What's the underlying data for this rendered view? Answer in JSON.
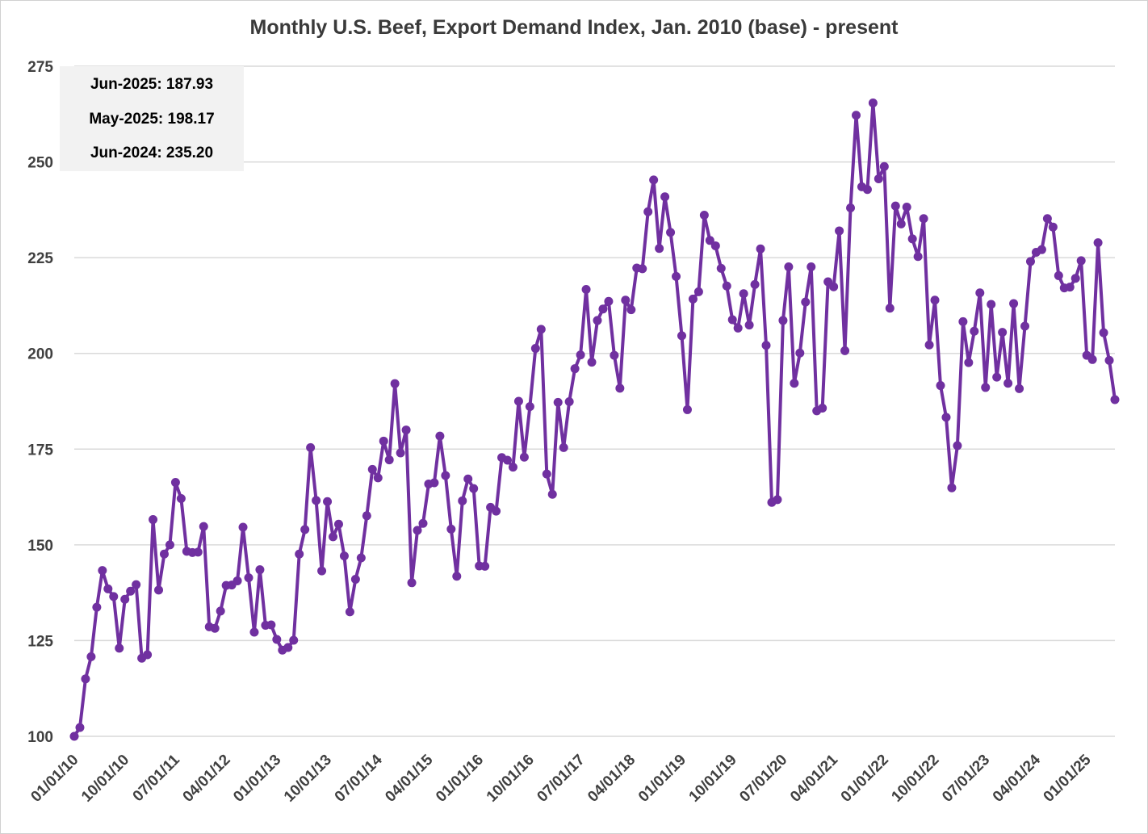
{
  "chart_data": {
    "type": "line",
    "title": "Monthly U.S. Beef, Export Demand Index, Jan. 2010 (base) - present",
    "xlabel": "",
    "ylabel": "",
    "ylim": [
      100,
      275
    ],
    "yticks": [
      100,
      125,
      150,
      175,
      200,
      225,
      250,
      275
    ],
    "x_tick_labels": [
      "01/01/10",
      "10/01/10",
      "07/01/11",
      "04/01/12",
      "01/01/13",
      "10/01/13",
      "07/01/14",
      "04/01/15",
      "01/01/16",
      "10/01/16",
      "07/01/17",
      "04/01/18",
      "01/01/19",
      "10/01/19",
      "07/01/20",
      "04/01/21",
      "01/01/22",
      "10/01/22",
      "07/01/23",
      "04/01/24",
      "01/01/25"
    ],
    "x_start": "2010-01",
    "x_end": "2025-06",
    "grid": "horizontal",
    "line_color": "#7030a0",
    "annotations": [
      "Jun-2025: 187.93",
      "May-2025: 198.17",
      "Jun-2024: 235.20"
    ],
    "series": [
      {
        "values": [
          100,
          102.3,
          115,
          120.8,
          133.7,
          143.3,
          138.5,
          136.5,
          123,
          135.8,
          137.9,
          139.6,
          120.4,
          121.3,
          156.6,
          138.2,
          147.6,
          150,
          166.3,
          162.1,
          148.3,
          148,
          148.1,
          154.8,
          128.6,
          128.2,
          132.7,
          139.4,
          139.5,
          140.6,
          154.6,
          141.4,
          127.2,
          143.5,
          129,
          129.1,
          125.3,
          122.5,
          123.2,
          125.1,
          147.6,
          154,
          175.4,
          161.6,
          143.2,
          161.3,
          152.1,
          155.4,
          147.1,
          132.5,
          141,
          146.6,
          157.6,
          169.7,
          167.5,
          177.1,
          172.2,
          192.1,
          174,
          180,
          140.1,
          153.8,
          155.6,
          165.9,
          166.2,
          178.4,
          168.1,
          154.1,
          141.8,
          161.5,
          167.2,
          164.7,
          144.5,
          144.4,
          159.8,
          158.8,
          172.8,
          172.1,
          170.3,
          187.5,
          172.9,
          186.1,
          201.3,
          206.3,
          168.5,
          163.2,
          187.2,
          175.4,
          187.4,
          196,
          199.6,
          216.7,
          197.7,
          208.6,
          211.6,
          213.6,
          199.5,
          190.9,
          213.9,
          211.4,
          222.3,
          222.1,
          237,
          245.3,
          227.4,
          240.9,
          231.6,
          220.1,
          204.6,
          185.3,
          214.2,
          216.1,
          236.1,
          229.5,
          228.1,
          222.2,
          217.6,
          208.8,
          206.6,
          215.6,
          207.4,
          218,
          227.3,
          202.1,
          161.1,
          161.8,
          208.6,
          222.6,
          192.2,
          200.1,
          213.4,
          222.6,
          185,
          185.7,
          218.7,
          217.4,
          232,
          200.7,
          238,
          262.2,
          243.5,
          242.8,
          265.4,
          245.6,
          248.8,
          211.8,
          238.5,
          233.8,
          238.2,
          229.9,
          225.3,
          235.2,
          202.2,
          213.9,
          191.6,
          183.3,
          164.9,
          175.9,
          208.3,
          197.6,
          205.8,
          215.8,
          191.1,
          212.8,
          193.8,
          205.5,
          192.2,
          213,
          190.8,
          207.1,
          224,
          226.4,
          227.1,
          235.2,
          233,
          220.3,
          217.1,
          217.3,
          219.6,
          224.2,
          199.5,
          198.4,
          228.9,
          205.4,
          198.17,
          187.93
        ]
      }
    ]
  }
}
